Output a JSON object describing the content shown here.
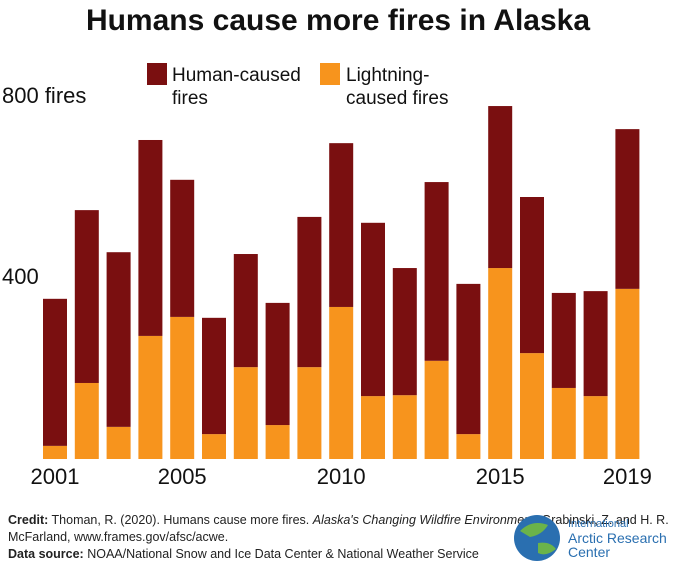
{
  "chart_data": {
    "type": "stacked_bar",
    "title": "Humans cause more fires in Alaska",
    "categories": [
      "2001",
      null,
      null,
      null,
      "2005",
      null,
      null,
      null,
      null,
      "2010",
      null,
      null,
      null,
      null,
      "2015",
      null,
      null,
      null,
      "2019"
    ],
    "series": [
      {
        "name": "Human-caused fires",
        "color": "#7a0f10",
        "values": [
          325,
          382,
          386,
          433,
          303,
          257,
          250,
          270,
          332,
          362,
          383,
          281,
          395,
          332,
          358,
          345,
          210,
          232,
          353
        ]
      },
      {
        "name": "Lightning-caused fires",
        "color": "#f7941d",
        "values": [
          29,
          168,
          71,
          272,
          314,
          55,
          203,
          75,
          203,
          336,
          139,
          141,
          217,
          55,
          422,
          234,
          157,
          139,
          376
        ]
      }
    ],
    "ylim": [
      0,
      800
    ],
    "yticks": [
      400,
      {
        "value": 800,
        "label": "800 fires"
      }
    ],
    "grid": false
  },
  "footer": {
    "credit_label": "Credit:",
    "credit_text": "Thoman, R. (2020). Humans cause more fires.",
    "credit_italic": "Alaska's Changing Wildfire Environment",
    "credit_rest": ", Grabinski, Z. and H. R. McFarland, www.frames.gov/afsc/acwe.",
    "source_label": "Data source:",
    "source_text": "NOAA/National Snow and Ice Data Center & National Weather Service",
    "logo_lines": [
      "International",
      "Arctic Research",
      "Center"
    ]
  }
}
